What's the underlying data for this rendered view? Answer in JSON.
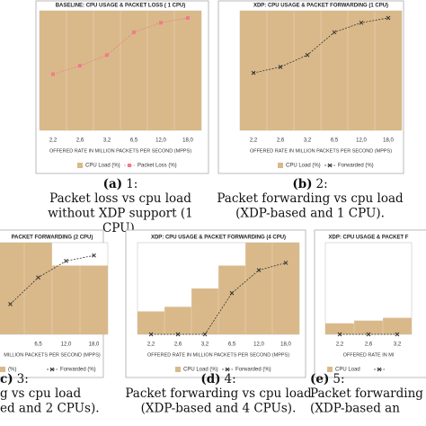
{
  "chart_data": [
    {
      "type": "combo",
      "title": "BASELINE: CPU USAGE & PACKET LOSS ( 1 CPU)",
      "categories": [
        "2,2",
        "2,6",
        "3,2",
        "6,5",
        "12,0",
        "18,0"
      ],
      "x_label": "OFFERED RATE IN MILLION PACKETS PER SECOND (MPPS)",
      "ylim": [
        0,
        100
      ],
      "series": [
        {
          "name": "CPU Load (%)",
          "color": "#d9b98a",
          "values": [
            100,
            100,
            100,
            100,
            100,
            100
          ]
        },
        {
          "name": "Packet Loss (%)",
          "color": "#f07c8a",
          "marker": "square",
          "values": [
            47,
            54,
            63,
            82,
            90,
            94
          ]
        }
      ],
      "label": "(a)",
      "caption": [
        "1:",
        "Packet loss vs cpu load",
        "without XDP support (1",
        "CPU)."
      ]
    },
    {
      "type": "combo",
      "title": "XDP: CPU USAGE & PACKET FORWARDING (1 CPU)",
      "categories": [
        "2,2",
        "2,6",
        "3,2",
        "6,5",
        "12,0",
        "18,0"
      ],
      "x_label": "OFFERED RATE IN MILLION PACKETS PER SECOND (MPPS)",
      "ylim": [
        0,
        100
      ],
      "series": [
        {
          "name": "CPU Load (%)",
          "color": "#d9b98a",
          "values": [
            100,
            100,
            100,
            100,
            100,
            100
          ]
        },
        {
          "name": "Forwarded (%)",
          "color": "#333333",
          "marker": "x",
          "values": [
            48,
            53,
            63,
            82,
            90,
            94
          ]
        }
      ],
      "label": "(b)",
      "caption": [
        "2:",
        "Packet forwarding vs cpu load",
        "(XDP-based and 1 CPU)."
      ]
    },
    {
      "type": "combo",
      "title": "PACKET FORWARDING (2 CPU)",
      "categories": [
        null,
        "6,5",
        "12,0",
        "18,0"
      ],
      "x_label": "MILLION PACKETS PER SECOND (MPPS)",
      "ylim": [
        0,
        100
      ],
      "series": [
        {
          "name": "(%)",
          "color": "#d9b98a",
          "values": [
            100,
            100,
            75,
            75
          ]
        },
        {
          "name": "Forwarded (%)",
          "color": "#333333",
          "marker": "x",
          "values": [
            33,
            62,
            80,
            86
          ]
        }
      ],
      "label": "c)",
      "caption": [
        "3:",
        "g vs cpu load",
        "ed and 2 CPUs)."
      ]
    },
    {
      "type": "combo",
      "title": "XDP: CPU USAGE & PACKET FORWARDING (4 CPU)",
      "categories": [
        "2,2",
        "2,6",
        "3,2",
        "6,5",
        "12,0",
        "18,0"
      ],
      "x_label": "OFFERED RATE IN MILLION PACKETS PER SECOND (MPPS)",
      "ylim": [
        0,
        100
      ],
      "series": [
        {
          "name": "CPU Load (%)",
          "color": "#d9b98a",
          "values": [
            25,
            30,
            50,
            75,
            100,
            100
          ]
        },
        {
          "name": "Forwarded (%)",
          "color": "#333333",
          "marker": "x",
          "values": [
            0,
            0,
            0,
            45,
            70,
            78
          ]
        }
      ],
      "label": "(d)",
      "caption": [
        "4:",
        "Packet forwarding vs cpu load",
        "(XDP-based and 4 CPUs)."
      ]
    },
    {
      "type": "combo",
      "title": "XDP: CPU USAGE & PACKET F",
      "categories": [
        "2,2",
        "2,6",
        "3,2"
      ],
      "x_label": "OFFERED RATE IN MI",
      "ylim": [
        0,
        100
      ],
      "series": [
        {
          "name": "CPU Load",
          "color": "#d9b98a",
          "values": [
            12,
            15,
            18
          ]
        },
        {
          "color": "#333333",
          "marker": "x",
          "values": [
            0,
            0,
            0
          ]
        }
      ],
      "label": "(e)",
      "caption": [
        "5:",
        "Packet forwarding",
        "(XDP-based an"
      ]
    }
  ]
}
